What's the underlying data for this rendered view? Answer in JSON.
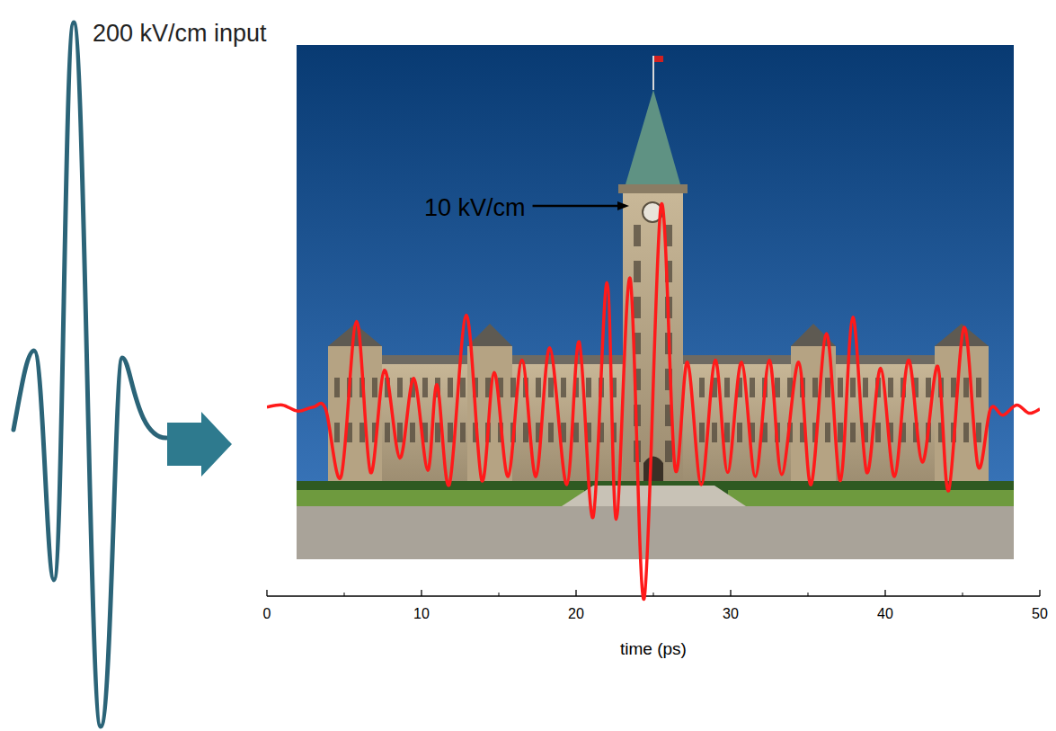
{
  "chart_data": {
    "type": "line",
    "annotations": [
      "200 kV/cm input",
      "10 kV/cm"
    ],
    "x_label": "time (ps)",
    "x": [
      0,
      1,
      2,
      3,
      3.8,
      4.8,
      5.8,
      6.7,
      7.6,
      8.6,
      9.5,
      10.4,
      11.0,
      11.8,
      12.9,
      13.9,
      14.7,
      15.6,
      16.5,
      17.4,
      18.3,
      19.4,
      20.2,
      21.1,
      22.0,
      22.6,
      23.5,
      24.4,
      25.5,
      26.4,
      27.2,
      28.1,
      29.0,
      29.8,
      30.7,
      31.6,
      32.5,
      33.3,
      34.4,
      35.2,
      36.2,
      37.1,
      37.9,
      38.8,
      39.7,
      40.6,
      41.5,
      42.4,
      43.4,
      44.1,
      45.1,
      46.0,
      46.8,
      47.6,
      48.5,
      49.3,
      50
    ],
    "values": [
      0.1,
      0.2,
      -0.1,
      0.1,
      0,
      -3.3,
      4.3,
      -3.1,
      1.9,
      -2.4,
      1.5,
      -3.0,
      1.2,
      -3.7,
      4.6,
      -3.5,
      1.8,
      -3.3,
      2.4,
      -3.3,
      3.0,
      -3.7,
      3.3,
      -5.3,
      6.2,
      -5.4,
      6.4,
      -9.3,
      10.0,
      -2.9,
      2.3,
      -3.7,
      2.4,
      -3.1,
      2.3,
      -3.3,
      2.4,
      -3.2,
      2.3,
      -3.7,
      3.7,
      -3.5,
      4.5,
      -3.1,
      2.0,
      -3.3,
      2.4,
      -2.6,
      2.1,
      -4.0,
      4.0,
      -2.8,
      0,
      -0.3,
      0.2,
      -0.2,
      0
    ],
    "color": "#ff1a1a",
    "xlim": [
      0,
      50
    ],
    "xticks": [
      0,
      10,
      20,
      30,
      40,
      50
    ],
    "ylim": [
      -12,
      12
    ],
    "tick_labels": "x",
    "grid": false
  }
}
